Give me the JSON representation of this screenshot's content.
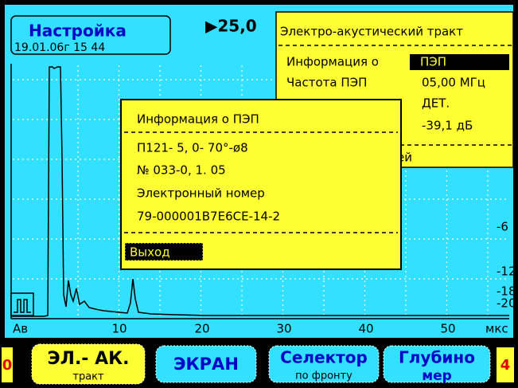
{
  "header": {
    "title": "Настройка",
    "datetime": "19.01.06г 15 44",
    "gain": "▶25,0"
  },
  "panel": {
    "title": "Электро-акустический тракт",
    "info_label": "Информация о",
    "info_value": "ПЭП",
    "freq_label": "Частота ПЭП",
    "freq_value": "05,00 МГц",
    "detector": "ДЕТ.",
    "level": "-39,1 дБ",
    "partial": "бней"
  },
  "dialog": {
    "title": "Информация о ПЭП",
    "lines": [
      "П121- 5, 0- 70°-ø8",
      "№ 033-0, 1. 05",
      "Электронный номер",
      "79-000001B7E6CE-14-2"
    ],
    "button": "Выход"
  },
  "scale_right": [
    "-6",
    "-12",
    "-18",
    "-20"
  ],
  "axis": {
    "start": "Ав",
    "ticks": [
      "10",
      "20",
      "30",
      "40",
      "50"
    ],
    "unit": "мкс"
  },
  "softkeys": [
    {
      "label": "0"
    },
    {
      "label": "ЭЛ.- АК.",
      "sub": "тракт"
    },
    {
      "label": "ЭКРАН"
    },
    {
      "label": "Селектор",
      "sub": "по фронту"
    },
    {
      "label": "Глубино",
      "sub": "мер"
    },
    {
      "label": "4"
    }
  ]
}
